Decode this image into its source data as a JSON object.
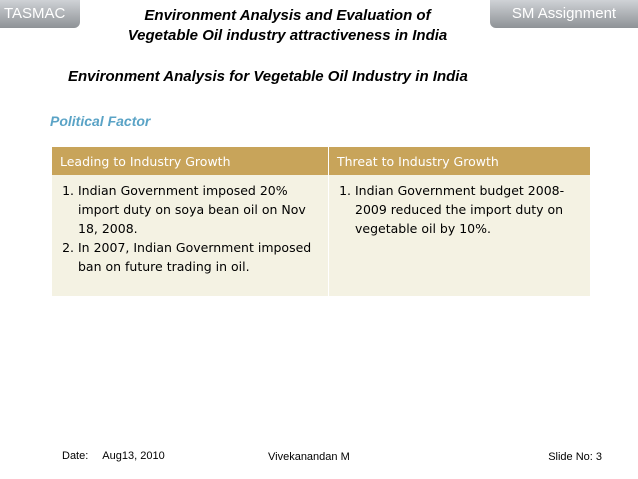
{
  "header": {
    "left_tag": "TASMAC",
    "right_tag": "SM Assignment",
    "title_line1": "Environment Analysis and Evaluation of",
    "title_line2": "Vegetable Oil industry attractiveness in India"
  },
  "main": {
    "subtitle": "Environment Analysis for Vegetable Oil Industry in India",
    "section_title": "Political Factor",
    "table": {
      "headers": [
        "Leading to Industry Growth",
        "Threat to Industry Growth"
      ],
      "leading": [
        "Indian Government imposed 20% import duty on soya bean oil on Nov 18, 2008.",
        "In 2007, Indian Government imposed ban on future trading in oil."
      ],
      "threat": [
        "Indian Government budget 2008-2009 reduced the import duty on vegetable oil by 10%."
      ]
    }
  },
  "footer": {
    "date_label": "Date:",
    "date_value": "Aug13, 2010",
    "author": "Vivekanandan M",
    "slide": "Slide No: 3"
  }
}
